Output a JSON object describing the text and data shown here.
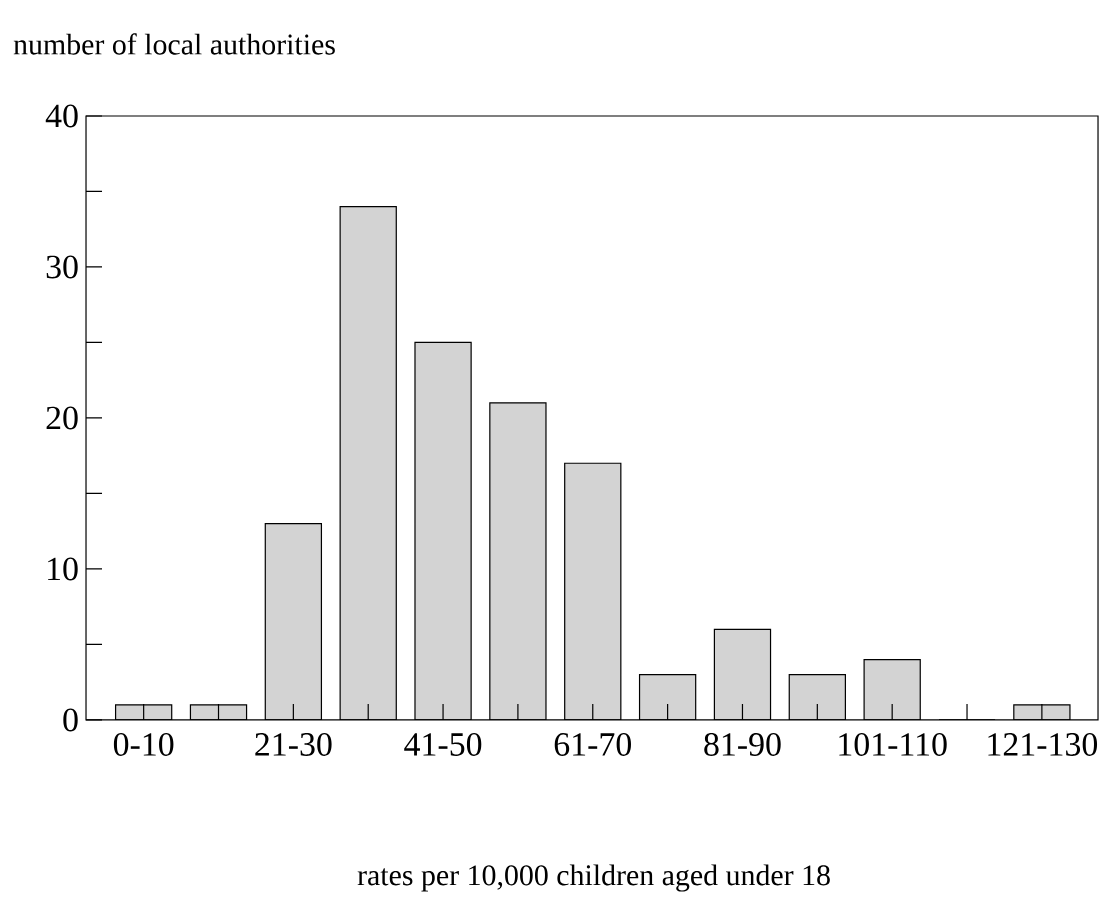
{
  "chart_data": {
    "type": "bar",
    "ylabel": "number of local authorities",
    "xlabel": "rates per 10,000 children aged under 18",
    "categories": [
      "0-10",
      null,
      "21-30",
      null,
      "41-50",
      null,
      "61-70",
      null,
      "81-90",
      null,
      "101-110",
      null,
      "121-130"
    ],
    "values": [
      1,
      1,
      13,
      34,
      25,
      21,
      17,
      3,
      6,
      3,
      4,
      0,
      1
    ],
    "color": "#d3d3d3",
    "ylim": [
      0,
      40
    ],
    "yticks": [
      0,
      {
        "value": 5,
        "label": null
      },
      10,
      {
        "value": 15,
        "label": null
      },
      20,
      {
        "value": 25,
        "label": null
      },
      30,
      {
        "value": 35,
        "label": null
      },
      40
    ],
    "grid": false
  }
}
